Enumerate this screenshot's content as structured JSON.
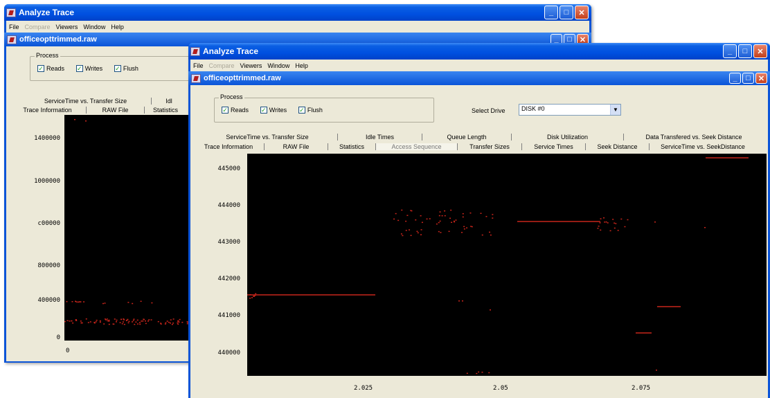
{
  "back": {
    "title": "Analyze Trace",
    "menu": [
      "File",
      "Compare",
      "Viewers",
      "Window",
      "Help"
    ],
    "inner_title": "officeopttrimmed.raw",
    "process_legend": "Process",
    "checkboxes": [
      "Reads",
      "Writes",
      "Flush"
    ],
    "tabs_row1": [
      "ServiceTime  vs. Transfer Size",
      "Idl"
    ],
    "tabs_row2": [
      "Trace Information",
      "RAW File",
      "Statistics"
    ],
    "y_labels": [
      "1400000",
      "1000000",
      "c00000",
      "800000",
      "400000",
      "0"
    ],
    "x_labels": [
      "0"
    ]
  },
  "front": {
    "title": "Analyze Trace",
    "menu": [
      "File",
      "Compare",
      "Viewers",
      "Window",
      "Help"
    ],
    "inner_title": "officeopttrimmed.raw",
    "process_legend": "Process",
    "checkboxes": [
      "Reads",
      "Writes",
      "Flush"
    ],
    "select_drive_label": "Select Drive",
    "select_drive_value": "DISK #0",
    "tabs_row1": [
      "ServiceTime  vs. Transfer Size",
      "Idle Times",
      "Queue Length",
      "Disk Utilization",
      "Data Transfered vs. Seek Distance"
    ],
    "tabs_row2": [
      "Trace Information",
      "RAW File",
      "Statistics",
      "Access Sequence",
      "Transfer Sizes",
      "Service Times",
      "Seek Distance",
      "ServiceTime vs. SeekDistance"
    ],
    "active_tab": "Access Sequence",
    "y_labels": [
      "445000",
      "444000",
      "443000",
      "442000",
      "441000",
      "440000"
    ],
    "x_labels": [
      "2.025",
      "2.05",
      "2.075"
    ]
  },
  "colors": {
    "title_blue": "#0a54d8",
    "plot_bg": "#000000",
    "point": "#c8251b"
  }
}
